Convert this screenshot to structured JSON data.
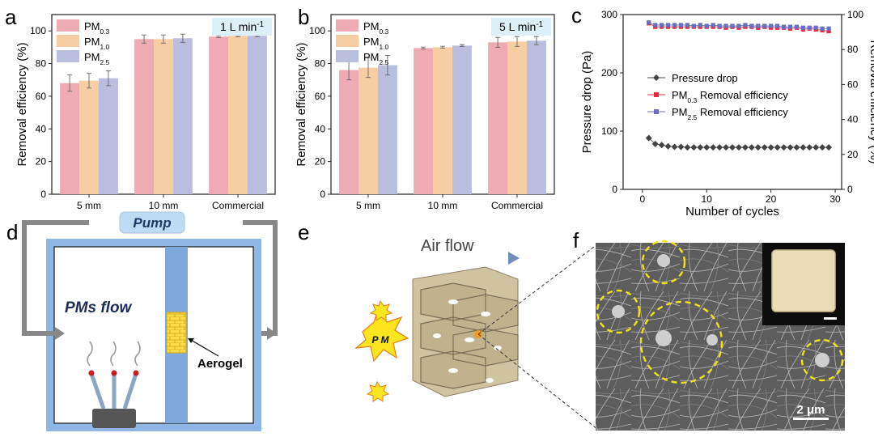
{
  "panels": {
    "a": "a",
    "b": "b",
    "c": "c",
    "d": "d",
    "e": "e",
    "f": "f"
  },
  "colors": {
    "pm03": "#eeabb4",
    "pm10": "#f7cda3",
    "pm25": "#b9bedf",
    "pm03_line": "#e8283c",
    "pm25_line": "#6b6fc4",
    "pressure": "#444444",
    "flow_badge": "#dcf0f8"
  },
  "chart_data": [
    {
      "id": "a",
      "type": "bar",
      "categories": [
        "5 mm",
        "10 mm",
        "Commercial"
      ],
      "series": [
        {
          "name": "PM0.3",
          "sub": "0.3",
          "values": [
            68,
            95,
            96.5
          ],
          "errors": [
            5,
            2.5,
            0.6
          ]
        },
        {
          "name": "PM1.0",
          "sub": "1.0",
          "values": [
            69.5,
            95,
            97
          ],
          "errors": [
            4.5,
            2.5,
            0.5
          ]
        },
        {
          "name": "PM2.5",
          "sub": "2.5",
          "values": [
            71,
            95.5,
            97
          ],
          "errors": [
            4.5,
            2.5,
            0.5
          ]
        }
      ],
      "ylabel": "Removal efficiency (%)",
      "ylim": [
        0,
        110
      ],
      "yticks": [
        0,
        20,
        40,
        60,
        80,
        100
      ],
      "flow": "1 L min",
      "flow_sup": "-1"
    },
    {
      "id": "b",
      "type": "bar",
      "categories": [
        "5 mm",
        "10 mm",
        "Commercial"
      ],
      "series": [
        {
          "name": "PM0.3",
          "sub": "0.3",
          "values": [
            76,
            89.5,
            93
          ],
          "errors": [
            6,
            0.6,
            3
          ]
        },
        {
          "name": "PM1.0",
          "sub": "1.0",
          "values": [
            77.5,
            90,
            93.5
          ],
          "errors": [
            6,
            0.6,
            3
          ]
        },
        {
          "name": "PM2.5",
          "sub": "2.5",
          "values": [
            79,
            91,
            94
          ],
          "errors": [
            6,
            0.6,
            2.5
          ]
        }
      ],
      "ylabel": "Removal efficiency (%)",
      "ylim": [
        0,
        110
      ],
      "yticks": [
        0,
        20,
        40,
        60,
        80,
        100
      ],
      "flow": "5 L min",
      "flow_sup": "-1"
    },
    {
      "id": "c",
      "type": "scatter",
      "xlabel": "Number of cycles",
      "ylabel": "Pressure drop (Pa)",
      "ylabel_right": "Removal efficiency (%)",
      "xlim": [
        -3,
        31
      ],
      "xticks": [
        0,
        10,
        20,
        30
      ],
      "ylim": [
        0,
        300
      ],
      "yticks": [
        0,
        100,
        200,
        300
      ],
      "ylim_right": [
        0,
        100
      ],
      "yticks_right": [
        0,
        20,
        40,
        60,
        80,
        100
      ],
      "x": [
        1,
        2,
        3,
        4,
        5,
        6,
        7,
        8,
        9,
        10,
        11,
        12,
        13,
        14,
        15,
        16,
        17,
        18,
        19,
        20,
        21,
        22,
        23,
        24,
        25,
        26,
        27,
        28,
        29
      ],
      "series": [
        {
          "name": "Pressure drop",
          "label": "Pressure drop",
          "axis": "left",
          "marker": "diamond",
          "values": [
            88,
            78,
            76,
            74,
            73,
            73,
            72,
            72,
            72,
            72,
            72,
            72,
            72,
            72,
            72,
            72,
            72,
            72,
            72,
            72,
            72,
            72,
            72,
            72,
            72,
            72,
            72,
            72,
            72
          ]
        },
        {
          "name": "PM0.3 Removal efficiency",
          "label_pre": "PM",
          "label_sub": "0.3",
          "label_post": " Removal efficiency",
          "axis": "right",
          "marker": "square",
          "values": [
            95,
            93,
            93,
            93,
            93,
            93,
            93,
            93,
            93,
            93,
            93,
            93,
            92.5,
            93,
            92.5,
            93,
            93,
            92.5,
            93,
            92.5,
            92.5,
            92.5,
            92,
            92.5,
            91.5,
            92,
            91.5,
            91,
            90.5
          ]
        },
        {
          "name": "PM2.5 Removal efficiency",
          "label_pre": "PM",
          "label_sub": "2.5",
          "label_post": " Removal efficiency",
          "axis": "right",
          "marker": "square",
          "values": [
            95.5,
            94,
            94,
            94,
            94,
            94,
            94,
            93.5,
            94,
            93.5,
            94,
            93.5,
            93.5,
            93.5,
            93.5,
            94,
            93.5,
            93.5,
            93.5,
            93.5,
            93.5,
            93,
            93,
            93,
            92.5,
            92.5,
            92.5,
            92,
            92
          ]
        }
      ]
    }
  ],
  "diagram_d": {
    "pump": "Pump",
    "flow": "PMs flow",
    "aerogel": "Aerogel"
  },
  "diagram_e": {
    "air_flow": "Air flow",
    "pm": "P M"
  },
  "image_f": {
    "scale": "2 μm"
  }
}
